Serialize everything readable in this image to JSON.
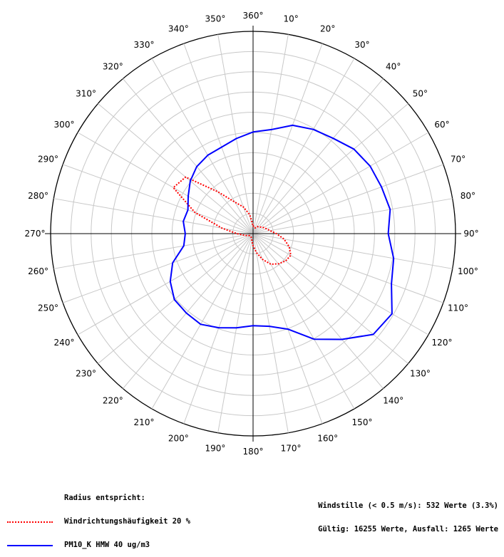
{
  "chart_data": {
    "type": "polar",
    "angle_ticks": [
      "360°",
      "10°",
      "20°",
      "30°",
      "40°",
      "50°",
      "60°",
      "70°",
      "80°",
      "90°",
      "100°",
      "110°",
      "120°",
      "130°",
      "140°",
      "150°",
      "160°",
      "170°",
      "180°",
      "190°",
      "200°",
      "210°",
      "220°",
      "230°",
      "240°",
      "250°",
      "260°",
      "270°",
      "280°",
      "290°",
      "300°",
      "310°",
      "320°",
      "330°",
      "340°",
      "350°"
    ],
    "rings": 10,
    "spokes_deg": 10,
    "series": [
      {
        "name": "Windrichtungshäufigkeit 20 %",
        "color": "#ff0000",
        "style": "dotted",
        "full_scale": 20,
        "directions": [
          0,
          10,
          20,
          30,
          40,
          50,
          60,
          70,
          80,
          90,
          100,
          110,
          120,
          130,
          140,
          150,
          160,
          170,
          180,
          190,
          200,
          210,
          220,
          230,
          240,
          250,
          260,
          270,
          280,
          290,
          300,
          310,
          320,
          330,
          340,
          350
        ],
        "values": [
          0.8,
          0.6,
          0.6,
          0.8,
          0.9,
          1.0,
          1.2,
          1.4,
          1.7,
          2.3,
          3.1,
          3.8,
          4.3,
          4.2,
          3.9,
          3.5,
          2.7,
          1.9,
          1.2,
          0.7,
          0.5,
          0.4,
          0.4,
          0.4,
          0.4,
          0.6,
          0.9,
          1.6,
          3.1,
          6.1,
          9.1,
          8.7,
          5.4,
          3.6,
          2.8,
          1.9
        ]
      },
      {
        "name": "PM10_K HMW 40 ug/m3",
        "color": "#0000ff",
        "style": "solid",
        "full_scale": 40,
        "directions": [
          0,
          10,
          20,
          30,
          40,
          50,
          60,
          70,
          80,
          90,
          100,
          110,
          120,
          130,
          140,
          150,
          160,
          170,
          180,
          190,
          200,
          210,
          220,
          230,
          240,
          250,
          260,
          270,
          280,
          290,
          300,
          310,
          320,
          330,
          340,
          350
        ],
        "values": [
          20.1,
          20.9,
          22.8,
          23.8,
          24.6,
          26.0,
          26.7,
          27.0,
          27.5,
          26.7,
          28.2,
          29.1,
          31.7,
          31.0,
          27.3,
          24.1,
          20.1,
          18.6,
          18.2,
          18.9,
          19.8,
          20.7,
          20.5,
          20.3,
          18.9,
          16.9,
          13.9,
          13.4,
          14.0,
          13.7,
          14.8,
          16.2,
          17.3,
          17.9,
          18.2,
          19.1
        ]
      }
    ]
  },
  "legend": {
    "heading": "Radius entspricht:",
    "items": [
      {
        "label": "Windrichtungshäufigkeit 20 %"
      },
      {
        "label": "PM10_K HMW 40 ug/m3"
      }
    ]
  },
  "stats": {
    "line1": "Windstille (< 0.5 m/s): 532 Werte (3.3%)",
    "line2": "Gültig: 16255 Werte, Ausfall: 1265 Werte"
  }
}
